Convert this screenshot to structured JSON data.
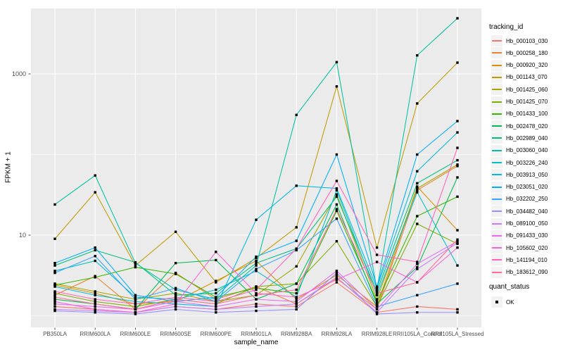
{
  "figure": {
    "legend": {
      "tracking_title": "tracking_id",
      "quant_title": "quant_status",
      "quant_items": [
        {
          "label": "OK",
          "marker": "black-square"
        }
      ]
    },
    "colors": {
      "panel_bg": "#EBEBEB",
      "grid": "#FFFFFF",
      "tick": "#333333",
      "tick_label": "#4D4D4D",
      "point": "#000000",
      "legend_key_bg": "#F2F2F2"
    }
  },
  "chart_data": {
    "type": "line",
    "title": "",
    "xlabel": "sample_name",
    "ylabel": "FPKM + 1",
    "y_scale": "log10",
    "ylim": [
      0.72,
      6500
    ],
    "grid": true,
    "legend_position": "right",
    "y_ticks": [
      {
        "value": 10,
        "label": "10"
      },
      {
        "value": 1000,
        "label": "1000"
      }
    ],
    "y_minor_gridlines": [
      1,
      100
    ],
    "point_marker": {
      "shape": "square",
      "color": "#000000",
      "legend_label": "OK"
    },
    "categories": [
      "PB350LA",
      "RRIM600LA",
      "RRIM600LE",
      "RRIM600SE",
      "RRIM600PE",
      "RRIM901LA",
      "RRIM928BA",
      "RRIM928LA",
      "RRIM928LE",
      "RRII105LA_Control",
      "RRII105LA_Stressed"
    ],
    "series": [
      {
        "name": "Hb_000103_030",
        "color": "#F8766D",
        "values": [
          1.3,
          1.2,
          1.1,
          1.3,
          1.2,
          1.4,
          1.3,
          2.6,
          1.1,
          1.3,
          1.2
        ]
      },
      {
        "name": "Hb_000258_180",
        "color": "#EA8331",
        "values": [
          1.8,
          3.1,
          1.2,
          3.4,
          1.6,
          2.3,
          1.4,
          2.9,
          1.2,
          36,
          72
        ]
      },
      {
        "name": "Hb_000920_320",
        "color": "#D89000",
        "values": [
          2.4,
          1.9,
          1.4,
          1.5,
          2.7,
          4.8,
          1.6,
          3.2,
          1.3,
          40,
          11.5
        ]
      },
      {
        "name": "Hb_001143_070",
        "color": "#C09B00",
        "values": [
          9,
          34,
          4.2,
          11,
          2.6,
          5.2,
          12.5,
          700,
          7,
          430,
          1380
        ]
      },
      {
        "name": "Hb_001425_060",
        "color": "#A3A500",
        "values": [
          2.5,
          2,
          1.6,
          1.9,
          1.5,
          1.8,
          4.1,
          32,
          1.6,
          38,
          75
        ]
      },
      {
        "name": "Hb_001425_070",
        "color": "#7CAE00",
        "values": [
          1.9,
          1.5,
          1.3,
          1.6,
          1.4,
          2.3,
          2.5,
          8.4,
          1.3,
          13.8,
          7.8
        ]
      },
      {
        "name": "Hb_001433_100",
        "color": "#39B600",
        "values": [
          2.4,
          3,
          4,
          3.3,
          1.7,
          2.2,
          1.9,
          20,
          1.5,
          17.2,
          30
        ]
      },
      {
        "name": "Hb_002478_020",
        "color": "#00BB4E",
        "values": [
          1.6,
          1.4,
          1.2,
          4.5,
          4.9,
          1.6,
          2.5,
          24,
          1.4,
          4,
          52
        ]
      },
      {
        "name": "Hb_002989_040",
        "color": "#00BF7D",
        "values": [
          4.2,
          6.5,
          4.6,
          1.8,
          1.9,
          4.5,
          6.8,
          30,
          2,
          44,
          85
        ]
      },
      {
        "name": "Hb_003060_040",
        "color": "#00C1A3",
        "values": [
          24,
          55,
          4.5,
          2.1,
          1.6,
          4.2,
          310,
          1400,
          2.1,
          1700,
          4900
        ]
      },
      {
        "name": "Hb_003226_240",
        "color": "#00BFC4",
        "values": [
          3.6,
          4.8,
          1.7,
          1.6,
          2.1,
          3.6,
          1.7,
          36,
          1.8,
          34,
          4.2
        ]
      },
      {
        "name": "Hb_003913_050",
        "color": "#00BAE0",
        "values": [
          2.3,
          1.8,
          1.5,
          1.4,
          1.3,
          15.5,
          41,
          38,
          2.2,
          62,
          188
        ]
      },
      {
        "name": "Hb_023051_020",
        "color": "#00B0F6",
        "values": [
          4.5,
          7,
          1.8,
          1.5,
          1.7,
          5.4,
          8.5,
          100,
          2.3,
          100,
          260
        ]
      },
      {
        "name": "Hb_032202_250",
        "color": "#35A2FF",
        "values": [
          3.4,
          5.5,
          1.6,
          2.2,
          1.5,
          3.8,
          6.5,
          16,
          1.3,
          1.8,
          2.5
        ]
      },
      {
        "name": "Hb_034482_040",
        "color": "#9590FF",
        "values": [
          1.15,
          1.1,
          1.05,
          1.2,
          1.1,
          1.15,
          1.2,
          3.4,
          1.05,
          1.1,
          1.1
        ]
      },
      {
        "name": "Hb_089100_050",
        "color": "#C77CFF",
        "values": [
          1.2,
          1.15,
          1.1,
          1.3,
          1.2,
          1.3,
          1.4,
          3,
          1.1,
          3.8,
          8
        ]
      },
      {
        "name": "Hb_091433_030",
        "color": "#E76BF3",
        "values": [
          1.4,
          1.3,
          1.2,
          1.5,
          1.3,
          1.6,
          1.5,
          3.6,
          1.2,
          4.4,
          8.4
        ]
      },
      {
        "name": "Hb_105602_020",
        "color": "#FA62DB",
        "values": [
          1.5,
          1.2,
          1.1,
          1.4,
          6.2,
          1.9,
          1.7,
          2.8,
          4.65,
          2.6,
          7
        ]
      },
      {
        "name": "Hb_141194_010",
        "color": "#FF62BC",
        "values": [
          2,
          1.6,
          1.4,
          1.7,
          1.5,
          2.1,
          6.8,
          47,
          5.7,
          4.65,
          121
        ]
      },
      {
        "name": "Hb_183612_090",
        "color": "#FF6A98",
        "values": [
          1.7,
          1.4,
          1.2,
          1.6,
          1.4,
          1.8,
          2.1,
          21,
          1.9,
          2.6,
          8.8
        ]
      }
    ]
  }
}
